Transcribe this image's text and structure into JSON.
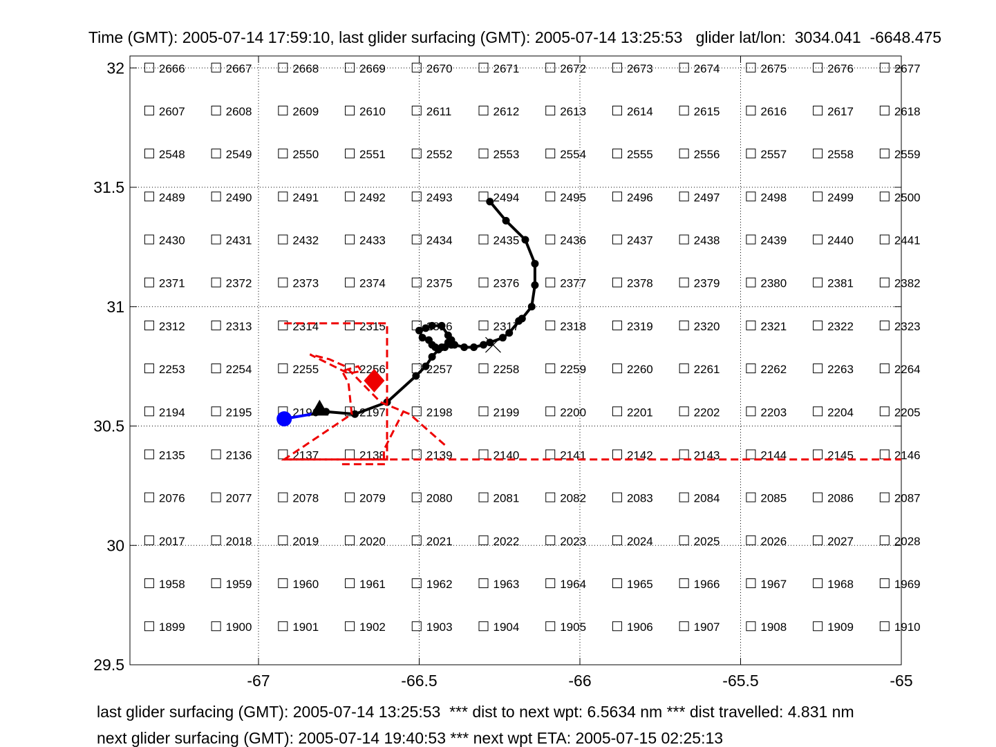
{
  "header": {
    "title": "Time (GMT): 2005-07-14 17:59:10, last glider surfacing (GMT): 2005-07-14 13:25:53   glider lat/lon:  3034.041  -6648.475"
  },
  "footer": {
    "line1": "last glider surfacing (GMT): 2005-07-14 13:25:53  *** dist to next wpt: 6.5634 nm *** dist travelled: 4.831 nm",
    "line2": "next glider surfacing (GMT): 2005-07-14 19:40:53 *** next wpt ETA: 2005-07-15 02:25:13"
  },
  "chart_data": {
    "type": "scatter",
    "xlim": [
      -67.4,
      -65
    ],
    "ylim": [
      29.5,
      32.05
    ],
    "grid": true,
    "grid_style": "dotted",
    "xticks": [
      {
        "value": -67,
        "label": "-67"
      },
      {
        "value": -66.5,
        "label": "-66.5"
      },
      {
        "value": -66,
        "label": "-66"
      },
      {
        "value": -65.5,
        "label": "-65.5"
      },
      {
        "value": -65,
        "label": "-65"
      }
    ],
    "yticks": [
      {
        "value": 29.5,
        "label": "29.5"
      },
      {
        "value": 30,
        "label": "30"
      },
      {
        "value": 30.5,
        "label": "30.5"
      },
      {
        "value": 31,
        "label": "31"
      },
      {
        "value": 31.5,
        "label": "31.5"
      },
      {
        "value": 32,
        "label": "32"
      }
    ],
    "grid_cells": {
      "x_start": -67.34,
      "x_step": 0.208,
      "columns": 12,
      "rows": [
        {
          "lat": 32.0,
          "first_id": 2666
        },
        {
          "lat": 31.82,
          "first_id": 2607
        },
        {
          "lat": 31.64,
          "first_id": 2548
        },
        {
          "lat": 31.46,
          "first_id": 2489
        },
        {
          "lat": 31.28,
          "first_id": 2430
        },
        {
          "lat": 31.1,
          "first_id": 2371
        },
        {
          "lat": 30.92,
          "first_id": 2312
        },
        {
          "lat": 30.74,
          "first_id": 2253
        },
        {
          "lat": 30.56,
          "first_id": 2194
        },
        {
          "lat": 30.38,
          "first_id": 2135
        },
        {
          "lat": 30.2,
          "first_id": 2076
        },
        {
          "lat": 30.02,
          "first_id": 2017
        },
        {
          "lat": 29.84,
          "first_id": 1958
        },
        {
          "lat": 29.66,
          "first_id": 1899
        }
      ]
    },
    "series": [
      {
        "style": "track",
        "color": "#000000",
        "markers": "dots",
        "x": [
          -66.28,
          -66.23,
          -66.17,
          -66.14,
          -66.14,
          -66.15,
          -66.18,
          -66.19,
          -66.22,
          -66.24,
          -66.28,
          -66.3,
          -66.33,
          -66.36,
          -66.39,
          -66.4,
          -66.4,
          -66.41,
          -66.43,
          -66.46,
          -66.48,
          -66.5,
          -66.49,
          -66.47,
          -66.46,
          -66.45,
          -66.43,
          -66.41,
          -66.4,
          -66.42,
          -66.44,
          -66.46,
          -66.48,
          -66.51,
          -66.6,
          -66.7,
          -66.79
        ],
        "y": [
          31.44,
          31.36,
          31.28,
          31.18,
          31.09,
          31.0,
          30.95,
          30.94,
          30.89,
          30.87,
          30.85,
          30.84,
          30.83,
          30.83,
          30.84,
          30.84,
          30.86,
          30.88,
          30.92,
          30.92,
          30.91,
          30.9,
          30.87,
          30.86,
          30.84,
          30.83,
          30.83,
          30.85,
          30.84,
          30.83,
          30.82,
          30.79,
          30.75,
          30.71,
          30.6,
          30.55,
          30.56
        ]
      },
      {
        "style": "recent",
        "color": "#0000ff",
        "x": [
          -66.79,
          -66.92
        ],
        "y": [
          30.56,
          30.53
        ]
      },
      {
        "style": "dashed-route",
        "color": "#ee0000",
        "x": [
          -66.92,
          -66.6,
          -66.6,
          -66.92,
          -66.71,
          -66.72,
          -66.74,
          -66.69,
          -66.68,
          -66.72,
          -66.84,
          -66.78,
          -66.73,
          -66.62,
          -66.53,
          -66.42
        ],
        "y": [
          30.93,
          30.93,
          30.36,
          30.36,
          30.55,
          30.68,
          30.73,
          30.75,
          30.73,
          30.72,
          30.8,
          30.78,
          30.75,
          30.6,
          30.55,
          30.42
        ]
      },
      {
        "style": "dashed-route",
        "color": "#ee0000",
        "x": [
          -66.74,
          -66.61,
          -66.61,
          -66.55
        ],
        "y": [
          30.34,
          30.34,
          30.4,
          30.56
        ]
      },
      {
        "style": "dashed-route",
        "color": "#ee0000",
        "x": [
          -66.92,
          -65.0
        ],
        "y": [
          30.36,
          30.36
        ]
      }
    ],
    "markers": [
      {
        "shape": "circle",
        "color": "#0000ff",
        "x": -66.92,
        "y": 30.53
      },
      {
        "shape": "triangle",
        "color": "#000000",
        "x": -66.81,
        "y": 30.57
      },
      {
        "shape": "diamond",
        "color": "#ee0000",
        "x": -66.64,
        "y": 30.69
      },
      {
        "shape": "cross",
        "color": "#000000",
        "x": -66.27,
        "y": 30.84
      }
    ]
  }
}
